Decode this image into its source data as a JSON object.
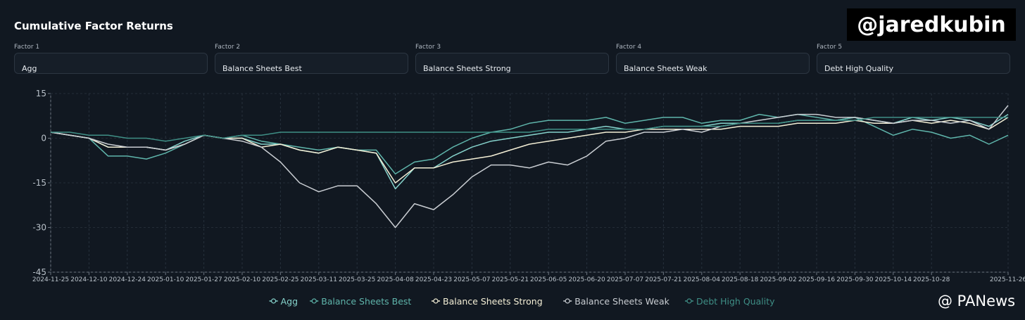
{
  "header": {
    "title": "Cumulative Factor Returns"
  },
  "controls": [
    {
      "label": "Factor 1",
      "value": "Agg"
    },
    {
      "label": "Factor 2",
      "value": "Balance Sheets Best"
    },
    {
      "label": "Factor 3",
      "value": "Balance Sheets Strong"
    },
    {
      "label": "Factor 4",
      "value": "Balance Sheets Weak"
    },
    {
      "label": "Factor 5",
      "value": "Debt High Quality"
    }
  ],
  "watermarks": [
    "@jaredkubin",
    "@ PANews"
  ],
  "chart_data": {
    "type": "line",
    "categories": [
      "2024-11-25",
      null,
      "2024-12-10",
      null,
      "2024-12-24",
      null,
      "2025-01-10",
      null,
      "2025-01-27",
      null,
      "2025-02-10",
      null,
      "2025-02-25",
      null,
      "2025-03-11",
      null,
      "2025-03-25",
      null,
      "2025-04-08",
      null,
      "2025-04-23",
      null,
      "2025-05-07",
      null,
      "2025-05-21",
      null,
      "2025-06-05",
      null,
      "2025-06-20",
      null,
      "2025-07-07",
      null,
      "2025-07-21",
      null,
      "2025-08-04",
      null,
      "2025-08-18",
      null,
      "2025-09-02",
      null,
      "2025-09-16",
      null,
      "2025-09-30",
      null,
      "2025-10-14",
      null,
      "2025-10-28",
      null,
      null,
      null,
      "2025-11-26"
    ],
    "series": [
      {
        "name": "Agg",
        "color": "#86d3cc",
        "values": [
          2,
          1,
          0,
          -3,
          -3,
          -3,
          -4,
          -1,
          1,
          0,
          0,
          -2,
          -2,
          -4,
          -5,
          -3,
          -4,
          -5,
          -17,
          -10,
          -10,
          -6,
          -3,
          -1,
          0,
          1,
          2,
          2,
          3,
          4,
          3,
          3,
          4,
          4,
          4,
          5,
          5,
          5,
          5,
          6,
          6,
          6,
          7,
          6,
          5,
          7,
          6,
          7,
          6,
          4,
          8
        ]
      },
      {
        "name": "Balance Sheets Best",
        "color": "#5fb5ab",
        "values": [
          2,
          1,
          0,
          -6,
          -6,
          -7,
          -5,
          -2,
          1,
          0,
          1,
          -1,
          -2,
          -3,
          -4,
          -3,
          -4,
          -4,
          -12,
          -8,
          -7,
          -3,
          0,
          2,
          3,
          5,
          6,
          6,
          6,
          7,
          5,
          6,
          7,
          7,
          5,
          6,
          6,
          8,
          7,
          8,
          7,
          6,
          7,
          4,
          1,
          3,
          2,
          0,
          1,
          -2,
          1
        ]
      },
      {
        "name": "Balance Sheets Strong",
        "color": "#f4efd6",
        "values": [
          2,
          1,
          0,
          -3,
          -3,
          -3,
          -4,
          -2,
          1,
          0,
          0,
          -3,
          -2,
          -4,
          -5,
          -3,
          -4,
          -5,
          -15,
          -10,
          -10,
          -8,
          -7,
          -6,
          -4,
          -2,
          -1,
          0,
          1,
          2,
          2,
          3,
          3,
          3,
          3,
          3,
          4,
          4,
          4,
          5,
          5,
          5,
          6,
          5,
          5,
          6,
          5,
          6,
          5,
          3,
          7
        ]
      },
      {
        "name": "Balance Sheets Weak",
        "color": "#c9cdd2",
        "values": [
          2,
          1,
          0,
          -2,
          -3,
          -3,
          -4,
          -2,
          1,
          0,
          -1,
          -3,
          -8,
          -15,
          -18,
          -16,
          -16,
          -22,
          -30,
          -22,
          -24,
          -19,
          -13,
          -9,
          -9,
          -10,
          -8,
          -9,
          -6,
          -1,
          0,
          2,
          2,
          3,
          2,
          4,
          5,
          6,
          7,
          8,
          8,
          7,
          7,
          6,
          5,
          6,
          6,
          5,
          6,
          3,
          11
        ]
      },
      {
        "name": "Debt High Quality",
        "color": "#3f8f86",
        "values": [
          2,
          2,
          1,
          1,
          0,
          0,
          -1,
          0,
          1,
          0,
          1,
          1,
          2,
          2,
          2,
          2,
          2,
          2,
          2,
          2,
          2,
          2,
          2,
          2,
          2,
          2,
          3,
          3,
          3,
          3,
          3,
          3,
          4,
          4,
          4,
          4,
          5,
          5,
          5,
          6,
          6,
          6,
          6,
          7,
          7,
          7,
          7,
          7,
          7,
          7,
          7
        ]
      }
    ],
    "ylim": [
      -45,
      15
    ],
    "yticks": [
      -45,
      -30,
      -15,
      0,
      15
    ],
    "grid": true
  }
}
